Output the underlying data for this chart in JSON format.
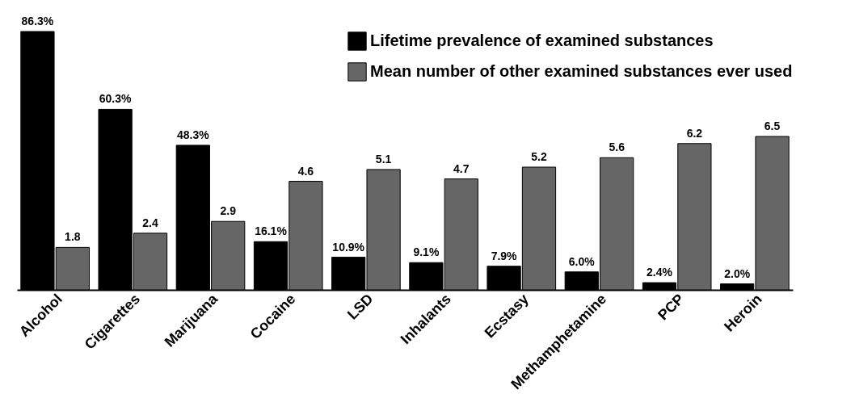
{
  "chart_data": {
    "type": "bar",
    "categories": [
      "Alcohol",
      "Cigarettes",
      "Marijuana",
      "Cocaine",
      "LSD",
      "Inhalants",
      "Ecstasy",
      "Methamphetamine",
      "PCP",
      "Heroin"
    ],
    "series": [
      {
        "name": "Lifetime prevalence of examined substances",
        "color": "#000000",
        "values": [
          86.3,
          60.3,
          48.3,
          16.1,
          10.9,
          9.1,
          7.9,
          6.0,
          2.4,
          2.0
        ],
        "value_labels": [
          "86.3%",
          "60.3%",
          "48.3%",
          "16.1%",
          "10.9%",
          "9.1%",
          "7.9%",
          "6.0%",
          "2.4%",
          "2.0%"
        ]
      },
      {
        "name": "Mean number of other examined substances ever used",
        "color": "#666666",
        "axis": "y2",
        "values": [
          1.8,
          2.4,
          2.9,
          4.6,
          5.1,
          4.7,
          5.2,
          5.6,
          6.2,
          6.5
        ],
        "value_labels": [
          "1.8",
          "2.4",
          "2.9",
          "4.6",
          "5.1",
          "4.7",
          "5.2",
          "5.6",
          "6.2",
          "6.5"
        ]
      }
    ],
    "tick_labels": "x",
    "grid": false,
    "legend": "top right"
  }
}
